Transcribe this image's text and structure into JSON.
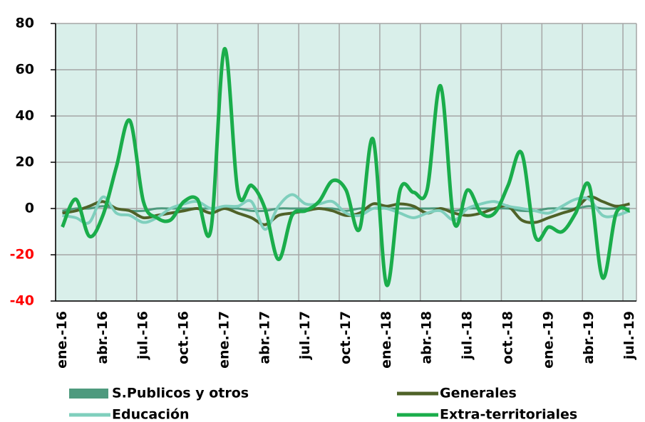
{
  "chart_data": {
    "type": "line",
    "categories": [
      "ene.-16",
      null,
      null,
      "abr.-16",
      null,
      null,
      "jul.-16",
      null,
      null,
      "oct.-16",
      null,
      null,
      "ene.-17",
      null,
      null,
      "abr.-17",
      null,
      null,
      "jul.-17",
      null,
      null,
      "oct.-17",
      null,
      null,
      "ene.-18",
      null,
      null,
      "abr.-18",
      null,
      null,
      "jul.-18",
      null,
      null,
      "oct.-18",
      null,
      null,
      "ene.-19",
      null,
      null,
      "abr.-19",
      null,
      null,
      "jul.-19"
    ],
    "series": [
      {
        "name": "S.Publicos y otros",
        "color": "#4e9a7e",
        "values": [
          -1,
          0,
          0,
          1,
          0,
          -1,
          -1,
          0,
          0,
          0,
          0,
          0,
          0,
          0,
          -1,
          -1,
          0,
          0,
          0,
          0,
          0,
          -1,
          0,
          0,
          0,
          0,
          0,
          0,
          0,
          -1,
          0,
          0,
          0,
          0,
          -1,
          -1,
          0,
          0,
          0,
          1,
          0,
          0,
          0
        ]
      },
      {
        "name": "Generales",
        "color": "#4f6228",
        "values": [
          -2,
          -1,
          1,
          3,
          0,
          -1,
          -4,
          -3,
          -2,
          -1,
          0,
          -2,
          0,
          -2,
          -4,
          -7,
          -3,
          -2,
          -1,
          0,
          -1,
          -3,
          -2,
          2,
          1,
          2,
          1,
          -2,
          0,
          -2,
          -3,
          -2,
          0,
          1,
          -5,
          -6,
          -4,
          -2,
          0,
          5,
          3,
          1,
          2
        ]
      },
      {
        "name": "Educación",
        "color": "#7fcfbd",
        "values": [
          -3,
          -4,
          -6,
          5,
          -2,
          -3,
          -6,
          -4,
          0,
          2,
          3,
          0,
          1,
          1,
          3,
          -9,
          1,
          6,
          2,
          2,
          3,
          -2,
          -3,
          0,
          0,
          -2,
          -4,
          -2,
          -1,
          -5,
          0,
          2,
          3,
          1,
          0,
          -1,
          -2,
          1,
          4,
          4,
          -3,
          -3,
          -1
        ]
      },
      {
        "name": "Extra-territoriales",
        "color": "#1aad4b",
        "values": [
          -8,
          4,
          -12,
          -3,
          18,
          38,
          3,
          -4,
          -5,
          3,
          4,
          -9,
          69,
          7,
          10,
          0,
          -22,
          -3,
          -1,
          3,
          12,
          8,
          -9,
          30,
          -33,
          8,
          7,
          8,
          53,
          -6,
          8,
          -2,
          -2,
          10,
          24,
          -12,
          -8,
          -10,
          -2,
          10,
          -30,
          -2,
          -1
        ]
      }
    ],
    "ylim": [
      -40,
      80
    ],
    "yticks": [
      -40,
      -20,
      0,
      20,
      40,
      60,
      80
    ],
    "grid": true,
    "plot_background": "#d9efea",
    "negative_tick_color": "#ff0000",
    "legend": "bottom"
  }
}
